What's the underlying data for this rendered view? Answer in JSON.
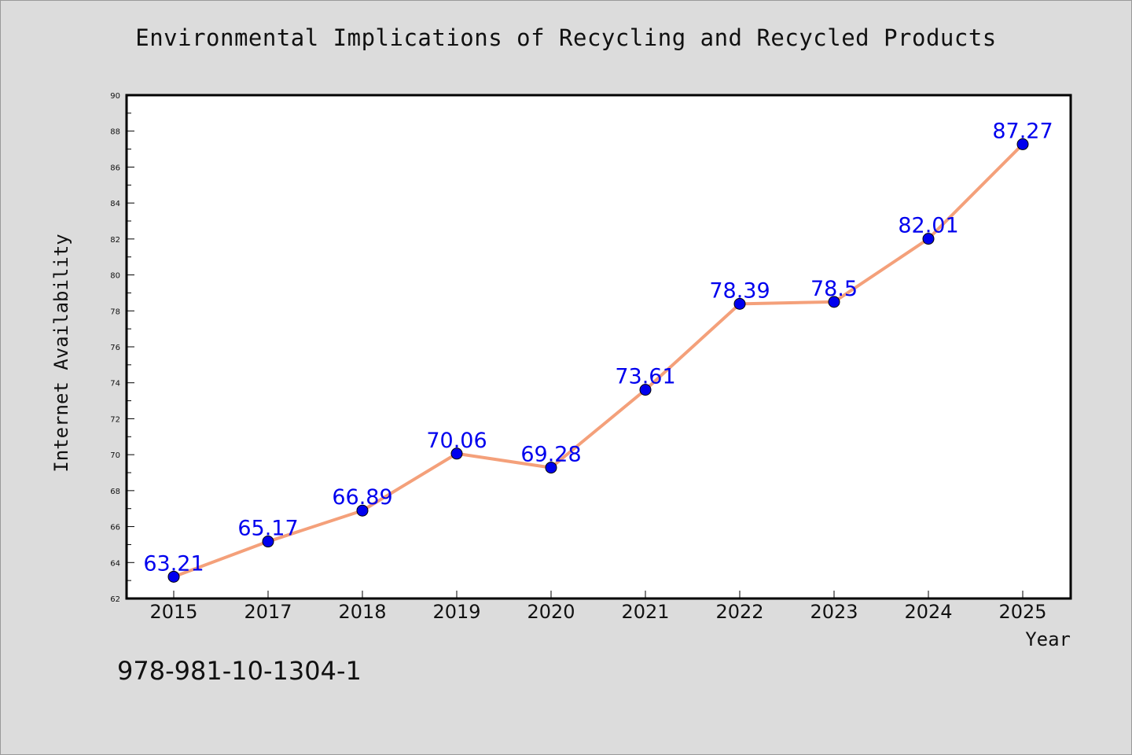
{
  "chart_data": {
    "type": "line",
    "title": "Environmental Implications of Recycling and Recycled Products",
    "xlabel": "Year",
    "ylabel": "Internet Availability",
    "categories": [
      "2015",
      "2017",
      "2018",
      "2019",
      "2020",
      "2021",
      "2022",
      "2023",
      "2024",
      "2025"
    ],
    "values": [
      63.21,
      65.17,
      66.89,
      70.06,
      69.28,
      73.61,
      78.39,
      78.5,
      82.01,
      87.27
    ],
    "data_labels": [
      "63.21",
      "65.17",
      "66.89",
      "70.06",
      "69.28",
      "73.61",
      "78.39",
      "78.5",
      "82.01",
      "87.27"
    ],
    "ylim": [
      62,
      90
    ],
    "yticks": [
      "62",
      "64",
      "66",
      "68",
      "70",
      "72",
      "74",
      "76",
      "78",
      "80",
      "82",
      "84",
      "86",
      "88",
      "90"
    ],
    "grid": false,
    "legend": "none",
    "colors": {
      "line": "#f4a07a",
      "marker": "#0000ee",
      "marker_edge": "#000000",
      "data_label": "#0000ee",
      "background": "#dcdcdc",
      "plot_background": "#ffffff"
    }
  },
  "footer": {
    "isbn": "978-981-10-1304-1"
  }
}
